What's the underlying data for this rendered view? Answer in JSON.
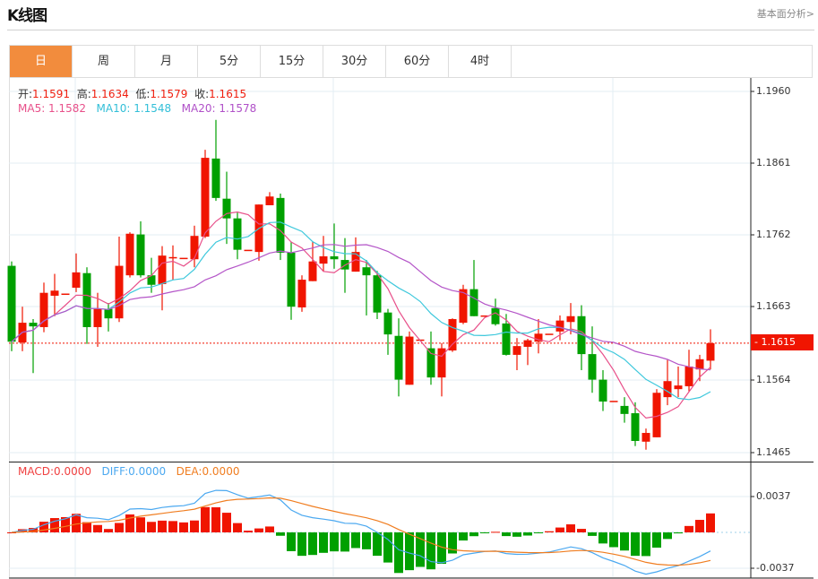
{
  "header": {
    "title": "K线图",
    "link": "基本面分析>"
  },
  "tabs": [
    {
      "label": "日",
      "active": true
    },
    {
      "label": "周"
    },
    {
      "label": "月"
    },
    {
      "label": "5分"
    },
    {
      "label": "15分"
    },
    {
      "label": "30分"
    },
    {
      "label": "60分"
    },
    {
      "label": "4时"
    }
  ],
  "ohlc_info": {
    "open_label": "开:",
    "open": "1.1591",
    "high_label": "高:",
    "high": "1.1634",
    "low_label": "低:",
    "low": "1.1579",
    "close_label": "收:",
    "close": "1.1615"
  },
  "ma_info": {
    "ma5": "MA5: 1.1582",
    "ma10": "MA10: 1.1548",
    "ma20": "MA20: 1.1578"
  },
  "macd_info": {
    "macd": "MACD:0.0000",
    "diff": "DIFF:0.0000",
    "dea": "DEA:0.0000"
  },
  "price_axis": [
    "1.1960",
    "1.1861",
    "1.1762",
    "1.1663",
    "1.1564",
    "1.1465"
  ],
  "current_price_tag": "- 1.1615",
  "macd_axis": [
    "0.0037",
    "-0.0037"
  ],
  "colors": {
    "up": "#f01500",
    "down": "#00a000",
    "ma5": "#e8508a",
    "ma10": "#3ec8dc",
    "ma20": "#b455c8",
    "diff": "#4aa8f0",
    "dea": "#f07d20",
    "active_tab": "#f28c3d"
  },
  "chart_data": {
    "type": "candlestick",
    "ylim": [
      1.1465,
      1.196
    ],
    "macd_ylim": [
      -0.0037,
      0.0037
    ],
    "current_price": 1.1615,
    "candles": [
      [
        1.1721,
        1.1727,
        1.1604,
        1.1617
      ],
      [
        1.1616,
        1.1665,
        1.1604,
        1.1643
      ],
      [
        1.1643,
        1.1648,
        1.1574,
        1.1638
      ],
      [
        1.1637,
        1.1698,
        1.163,
        1.1684
      ],
      [
        1.168,
        1.171,
        1.1652,
        1.1687
      ],
      [
        1.1683,
        1.1683,
        1.1683,
        1.1683
      ],
      [
        1.1691,
        1.1738,
        1.1685,
        1.1712
      ],
      [
        1.1711,
        1.1719,
        1.1614,
        1.1637
      ],
      [
        1.1637,
        1.1684,
        1.161,
        1.1662
      ],
      [
        1.1662,
        1.167,
        1.1631,
        1.1649
      ],
      [
        1.1649,
        1.1761,
        1.1644,
        1.1721
      ],
      [
        1.1708,
        1.1767,
        1.1705,
        1.1765
      ],
      [
        1.1764,
        1.1782,
        1.1705,
        1.1708
      ],
      [
        1.1708,
        1.1732,
        1.1684,
        1.1695
      ],
      [
        1.1696,
        1.1748,
        1.166,
        1.1735
      ],
      [
        1.1732,
        1.1749,
        1.1702,
        1.1733
      ],
      [
        1.1732,
        1.1732,
        1.1732,
        1.1732
      ],
      [
        1.173,
        1.1776,
        1.1719,
        1.1762
      ],
      [
        1.1761,
        1.188,
        1.1759,
        1.1869
      ],
      [
        1.1868,
        1.1921,
        1.181,
        1.1814
      ],
      [
        1.1813,
        1.185,
        1.1751,
        1.1786
      ],
      [
        1.1786,
        1.1794,
        1.173,
        1.1743
      ],
      [
        1.1743,
        1.1743,
        1.1743,
        1.1743
      ],
      [
        1.174,
        1.1805,
        1.1728,
        1.1805
      ],
      [
        1.1804,
        1.1822,
        1.1804,
        1.1816
      ],
      [
        1.1814,
        1.182,
        1.1729,
        1.1739
      ],
      [
        1.1739,
        1.1754,
        1.1647,
        1.1665
      ],
      [
        1.1664,
        1.1708,
        1.1658,
        1.1702
      ],
      [
        1.17,
        1.1754,
        1.17,
        1.1727
      ],
      [
        1.1724,
        1.1762,
        1.1713,
        1.1734
      ],
      [
        1.1734,
        1.1779,
        1.1717,
        1.173
      ],
      [
        1.1729,
        1.1759,
        1.1684,
        1.1716
      ],
      [
        1.1713,
        1.176,
        1.1713,
        1.174
      ],
      [
        1.1719,
        1.1729,
        1.1653,
        1.1708
      ],
      [
        1.1708,
        1.1714,
        1.1648,
        1.1657
      ],
      [
        1.1657,
        1.1662,
        1.1599,
        1.1627
      ],
      [
        1.1625,
        1.1649,
        1.1542,
        1.1565
      ],
      [
        1.1558,
        1.1631,
        1.1558,
        1.1624
      ],
      [
        1.162,
        1.162,
        1.162,
        1.162
      ],
      [
        1.1608,
        1.1631,
        1.1558,
        1.1568
      ],
      [
        1.1568,
        1.1615,
        1.1542,
        1.1608
      ],
      [
        1.1605,
        1.1649,
        1.1603,
        1.1648
      ],
      [
        1.1643,
        1.1695,
        1.1641,
        1.1689
      ],
      [
        1.1689,
        1.1729,
        1.1652,
        1.1652
      ],
      [
        1.1653,
        1.1653,
        1.1653,
        1.1653
      ],
      [
        1.1663,
        1.1676,
        1.1639,
        1.1641
      ],
      [
        1.1642,
        1.1655,
        1.1598,
        1.1599
      ],
      [
        1.1599,
        1.1622,
        1.1578,
        1.1611
      ],
      [
        1.161,
        1.1621,
        1.1585,
        1.1619
      ],
      [
        1.1617,
        1.1648,
        1.1601,
        1.1628
      ],
      [
        1.1628,
        1.1628,
        1.1628,
        1.1628
      ],
      [
        1.1631,
        1.1653,
        1.1619,
        1.1646
      ],
      [
        1.1644,
        1.167,
        1.1627,
        1.1652
      ],
      [
        1.1652,
        1.1667,
        1.1578,
        1.16
      ],
      [
        1.16,
        1.1638,
        1.1547,
        1.1565
      ],
      [
        1.1565,
        1.1578,
        1.1522,
        1.1535
      ],
      [
        1.1536,
        1.1536,
        1.1536,
        1.1536
      ],
      [
        1.1529,
        1.1541,
        1.1506,
        1.1518
      ],
      [
        1.1519,
        1.1534,
        1.1474,
        1.1481
      ],
      [
        1.148,
        1.1498,
        1.1469,
        1.1492
      ],
      [
        1.1486,
        1.1552,
        1.1486,
        1.1547
      ],
      [
        1.1541,
        1.1592,
        1.153,
        1.1563
      ],
      [
        1.1552,
        1.1583,
        1.1541,
        1.1557
      ],
      [
        1.1556,
        1.1606,
        1.1549,
        1.1583
      ],
      [
        1.1579,
        1.1599,
        1.1563,
        1.1593
      ],
      [
        1.1591,
        1.1634,
        1.1579,
        1.1615
      ]
    ]
  }
}
